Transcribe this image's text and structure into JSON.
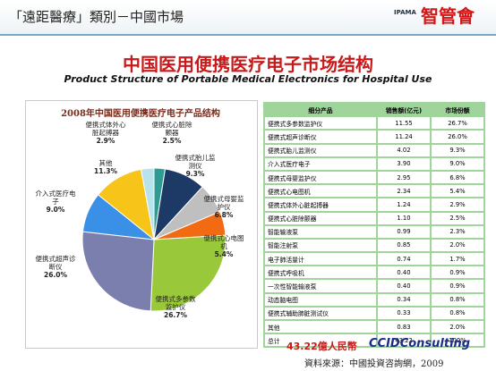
{
  "header": {
    "title": "「遠距醫療」類別－中國市場",
    "logo": "智管會",
    "logo_sub": "IPAMA"
  },
  "title": "中国医用便携医疗电子市场结构",
  "subtitle": "Product Structure of Portable Medical Electronics for Hospital Use",
  "chart_data": {
    "type": "pie",
    "title": "2008年中国医用便携医疗电子产品结构",
    "categories": [
      "便携式心脏除颤器",
      "便携式胎儿监测仪",
      "便携式母婴监护仪",
      "便携式心电图机",
      "便携式多参数监护仪",
      "便携式超声诊断仪",
      "介入式医疗电子",
      "其他",
      "便携式体外心脏起搏器"
    ],
    "values": [
      2.5,
      9.3,
      6.8,
      5.4,
      26.7,
      26.0,
      9.0,
      11.3,
      2.9
    ],
    "value_labels": [
      "2.5%",
      "9.3%",
      "6.8%",
      "5.4%",
      "26.7%",
      "26.0%",
      "9.0%",
      "11.3%",
      "2.9%"
    ],
    "colors": [
      "#2e9c94",
      "#1d3a66",
      "#bfbfbf",
      "#f26a12",
      "#99c93a",
      "#7b7fae",
      "#3a8fe6",
      "#f7c51a",
      "#b9e3ec"
    ]
  },
  "table": {
    "header": [
      "细分产品",
      "销售额(亿元)",
      "市场份额"
    ],
    "rows": [
      [
        "便携式多参数监护仪",
        "11.55",
        "26.7%"
      ],
      [
        "便携式超声诊断仪",
        "11.24",
        "26.0%"
      ],
      [
        "便携式胎儿监测仪",
        "4.02",
        "9.3%"
      ],
      [
        "介入式医疗电子",
        "3.90",
        "9.0%"
      ],
      [
        "便携式母婴监护仪",
        "2.95",
        "6.8%"
      ],
      [
        "便携式心电图机",
        "2.34",
        "5.4%"
      ],
      [
        "便携式体外心脏起搏器",
        "1.24",
        "2.9%"
      ],
      [
        "便携式心脏除颤器",
        "1.10",
        "2.5%"
      ],
      [
        "智能输液泵",
        "0.99",
        "2.3%"
      ],
      [
        "智能注射泵",
        "0.85",
        "2.0%"
      ],
      [
        "电子肺活量计",
        "0.74",
        "1.7%"
      ],
      [
        "便携式呼吸机",
        "0.40",
        "0.9%"
      ],
      [
        "一次性智能输液泵",
        "0.40",
        "0.9%"
      ],
      [
        "动态脑电图",
        "0.34",
        "0.8%"
      ],
      [
        "便携式辅助肺脏测试仪",
        "0.33",
        "0.8%"
      ],
      [
        "其他",
        "0.83",
        "2.0%"
      ],
      [
        "总计",
        "43.22",
        "100%"
      ]
    ]
  },
  "footer": {
    "total": "43.22億人民幣",
    "brand": "CCIDConsulting",
    "source": "資料來源：中國投資咨詢網，2009"
  }
}
